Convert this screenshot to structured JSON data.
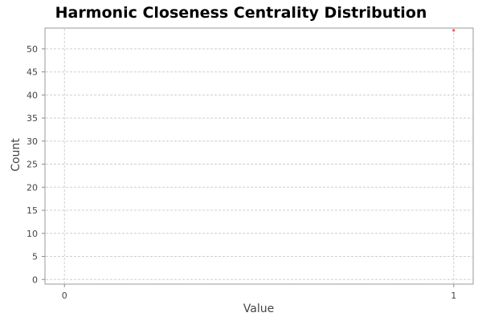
{
  "chart_data": {
    "type": "scatter",
    "title": "Harmonic Closeness Centrality Distribution",
    "xlabel": "Value",
    "ylabel": "Count",
    "xlim": [
      -0.05,
      1.05
    ],
    "ylim": [
      -1,
      54.5
    ],
    "xticks": [
      0,
      1
    ],
    "yticks": [
      0,
      5,
      10,
      15,
      20,
      25,
      30,
      35,
      40,
      45,
      50
    ],
    "grid": true,
    "series": [
      {
        "points": [
          {
            "x": 1,
            "y": 54
          }
        ],
        "color": "#ff5555"
      }
    ]
  }
}
